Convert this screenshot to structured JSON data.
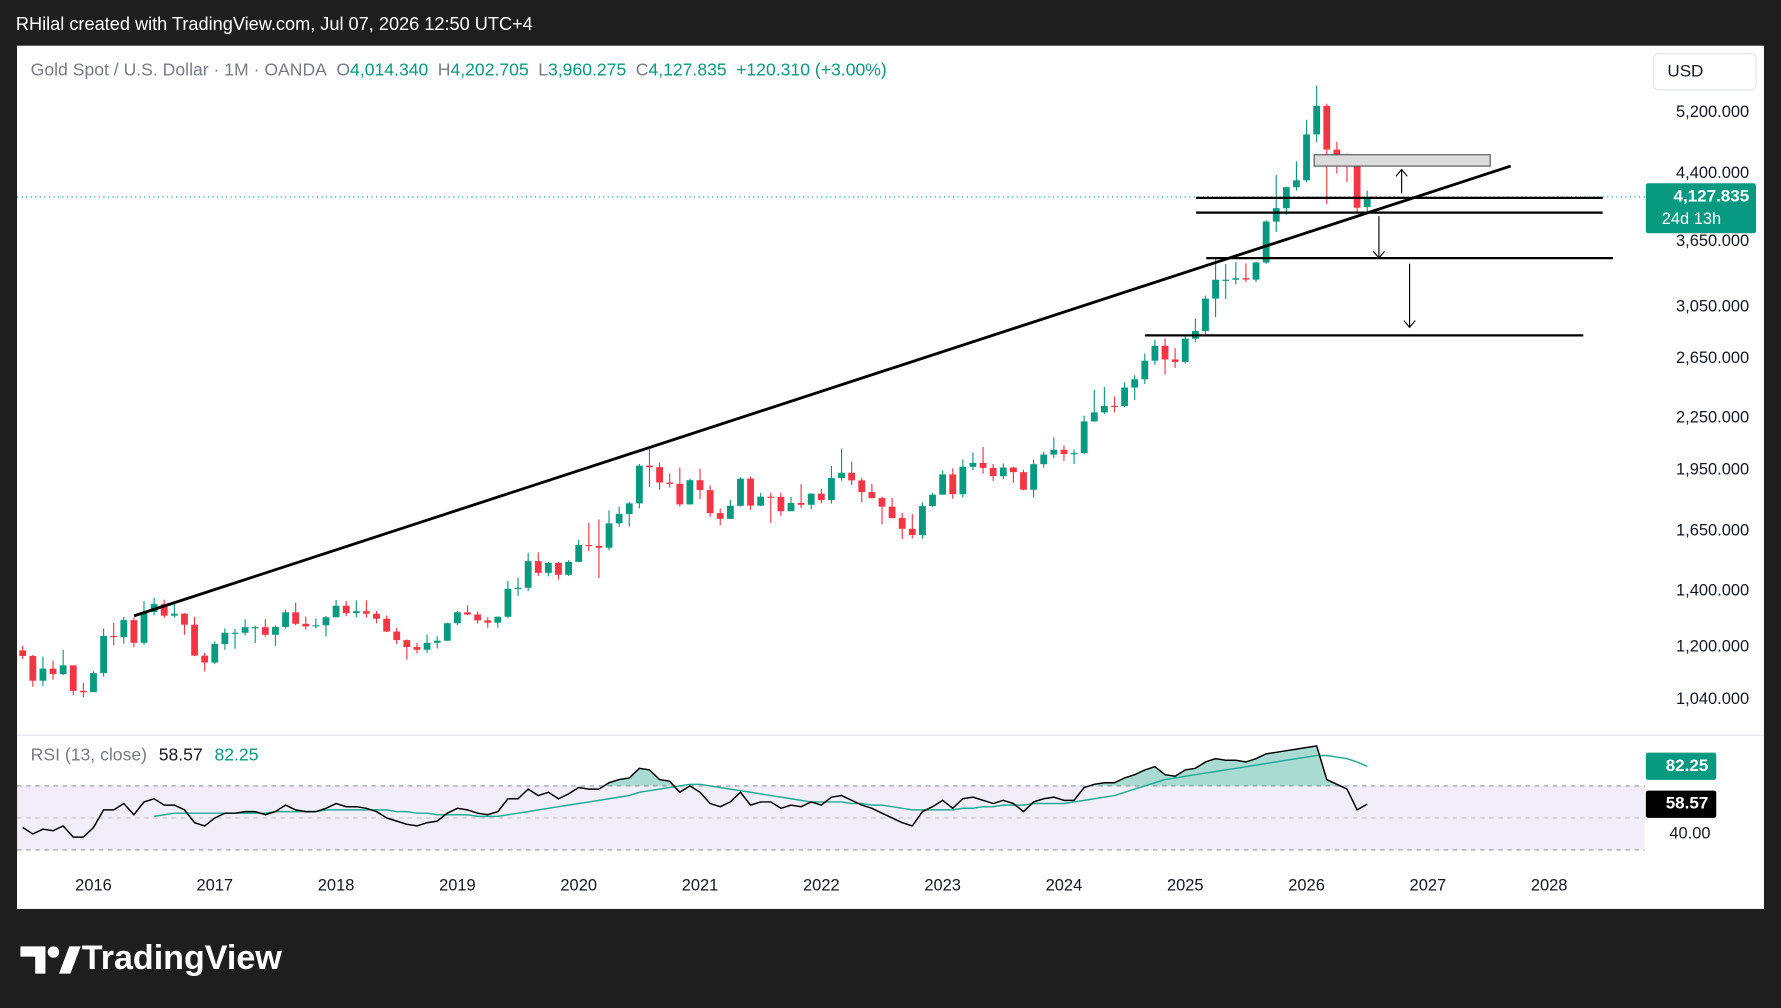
{
  "attribution": "RHilal created with TradingView.com, Jul 07, 2026 12:50 UTC+4",
  "brand": "TradingView",
  "chart_data": {
    "type": "candlestick",
    "header": {
      "symbol": "Gold Spot / U.S. Dollar · 1M · OANDA",
      "ohlc": [
        {
          "key": "O",
          "value": "4,014.340"
        },
        {
          "key": "H",
          "value": "4,202.705"
        },
        {
          "key": "L",
          "value": "3,960.275"
        },
        {
          "key": "C",
          "value": "4,127.835"
        }
      ],
      "change": "+120.310 (+3.00%)"
    },
    "currency": "USD",
    "price_label": "4,127.835",
    "countdown": "24d 13h",
    "up_color": "#089981",
    "down_color": "#f23645",
    "log_scale": true,
    "grid": false,
    "xtick_labels": [
      "2016",
      "2017",
      "2018",
      "2019",
      "2020",
      "2021",
      "2022",
      "2023",
      "2024",
      "2025",
      "2026",
      "2027",
      "2028"
    ],
    "open": [
      1190,
      1172,
      1095,
      1132,
      1115,
      1142,
      1065,
      1061,
      1118,
      1238,
      1234,
      1293,
      1215,
      1322,
      1351,
      1309,
      1316,
      1277,
      1173,
      1151,
      1211,
      1249,
      1249,
      1268,
      1268,
      1242,
      1269,
      1321,
      1280,
      1271,
      1275,
      1303,
      1345,
      1318,
      1325,
      1316,
      1298,
      1253,
      1224,
      1201,
      1192,
      1215,
      1222,
      1282,
      1321,
      1313,
      1292,
      1284,
      1305,
      1409,
      1413,
      1520,
      1472,
      1513,
      1464,
      1517,
      1589,
      1585,
      1577,
      1686,
      1730,
      1781,
      1975,
      1967,
      1886,
      1879,
      1776,
      1898,
      1847,
      1734,
      1707,
      1769,
      1906,
      1770,
      1814,
      1813,
      1743,
      1783,
      1774,
      1829,
      1797,
      1909,
      1937,
      1897,
      1837,
      1807,
      1765,
      1711,
      1661,
      1633,
      1768,
      1824,
      1928,
      1827,
      1969,
      1990,
      1963,
      1919,
      1965,
      1940,
      1849,
      1983,
      2036,
      2063,
      2039,
      2044,
      2230,
      2286,
      2327,
      2326,
      2447,
      2503,
      2634,
      2744,
      2643,
      2625,
      2798,
      2858,
      3123,
      3289,
      3289,
      3303,
      3290,
      3448,
      3858,
      4002,
      4239,
      4320,
      4900,
      5300,
      4700,
      4600,
      4500,
      4014.34
    ],
    "high": [
      1205,
      1175,
      1170,
      1157,
      1192,
      1142,
      1088,
      1124,
      1263,
      1283,
      1304,
      1303,
      1362,
      1375,
      1367,
      1352,
      1318,
      1304,
      1182,
      1220,
      1264,
      1262,
      1296,
      1273,
      1296,
      1274,
      1331,
      1357,
      1306,
      1299,
      1308,
      1366,
      1362,
      1365,
      1365,
      1326,
      1309,
      1266,
      1226,
      1214,
      1243,
      1237,
      1284,
      1326,
      1346,
      1324,
      1303,
      1306,
      1439,
      1453,
      1555,
      1557,
      1517,
      1516,
      1524,
      1612,
      1689,
      1704,
      1747,
      1765,
      1789,
      1984,
      2075,
      1992,
      1933,
      1965,
      1907,
      1959,
      1871,
      1756,
      1798,
      1913,
      1917,
      1832,
      1834,
      1834,
      1814,
      1877,
      1831,
      1853,
      1974,
      2070,
      1998,
      1910,
      1879,
      1814,
      1808,
      1735,
      1730,
      1786,
      1833,
      1949,
      1960,
      2009,
      2048,
      2079,
      1984,
      1987,
      1969,
      1953,
      2009,
      2052,
      2135,
      2088,
      2065,
      2265,
      2431,
      2450,
      2388,
      2483,
      2531,
      2686,
      2790,
      2801,
      2726,
      2817,
      2956,
      3148,
      3500,
      3435,
      3452,
      3439,
      3453,
      3872,
      4381,
      4245,
      4550,
      5100,
      5600,
      5330,
      4800,
      4650,
      4520,
      4202.705
    ],
    "low": [
      1162,
      1077,
      1080,
      1098,
      1112,
      1052,
      1046,
      1062,
      1108,
      1207,
      1212,
      1200,
      1208,
      1310,
      1301,
      1302,
      1242,
      1171,
      1123,
      1146,
      1192,
      1195,
      1240,
      1214,
      1236,
      1205,
      1263,
      1275,
      1260,
      1264,
      1236,
      1303,
      1307,
      1303,
      1302,
      1282,
      1251,
      1211,
      1160,
      1180,
      1182,
      1196,
      1221,
      1275,
      1310,
      1281,
      1266,
      1266,
      1301,
      1382,
      1400,
      1459,
      1458,
      1445,
      1459,
      1517,
      1562,
      1451,
      1567,
      1670,
      1671,
      1757,
      1863,
      1849,
      1860,
      1765,
      1775,
      1802,
      1717,
      1677,
      1706,
      1766,
      1750,
      1767,
      1688,
      1721,
      1746,
      1758,
      1753,
      1781,
      1780,
      1895,
      1872,
      1787,
      1805,
      1681,
      1709,
      1615,
      1617,
      1616,
      1765,
      1824,
      1804,
      1810,
      1950,
      1932,
      1893,
      1903,
      1884,
      1846,
      1810,
      1965,
      2016,
      2001,
      1984,
      2039,
      2228,
      2277,
      2286,
      2318,
      2364,
      2471,
      2604,
      2536,
      2583,
      2614,
      2772,
      2833,
      2970,
      3121,
      3247,
      3268,
      3268,
      3436,
      3750,
      3930,
      4200,
      4300,
      4800,
      4050,
      4400,
      4300,
      3950,
      3960.275
    ],
    "close": [
      1172,
      1095,
      1132,
      1115,
      1142,
      1065,
      1061,
      1118,
      1238,
      1234,
      1293,
      1215,
      1322,
      1351,
      1309,
      1316,
      1277,
      1173,
      1151,
      1211,
      1249,
      1249,
      1268,
      1268,
      1242,
      1269,
      1321,
      1280,
      1271,
      1275,
      1303,
      1345,
      1318,
      1325,
      1316,
      1298,
      1253,
      1224,
      1201,
      1192,
      1215,
      1222,
      1282,
      1321,
      1313,
      1292,
      1284,
      1305,
      1409,
      1413,
      1520,
      1472,
      1513,
      1464,
      1517,
      1589,
      1585,
      1577,
      1686,
      1730,
      1781,
      1975,
      1967,
      1886,
      1879,
      1776,
      1898,
      1847,
      1734,
      1707,
      1769,
      1906,
      1770,
      1814,
      1813,
      1743,
      1783,
      1774,
      1829,
      1797,
      1909,
      1937,
      1897,
      1837,
      1807,
      1765,
      1711,
      1661,
      1633,
      1768,
      1824,
      1928,
      1827,
      1969,
      1990,
      1963,
      1919,
      1965,
      1940,
      1849,
      1983,
      2036,
      2063,
      2039,
      2044,
      2230,
      2286,
      2327,
      2326,
      2447,
      2503,
      2634,
      2744,
      2643,
      2625,
      2798,
      2858,
      3123,
      3289,
      3289,
      3303,
      3290,
      3448,
      3858,
      4002,
      4239,
      4320,
      4900,
      5300,
      4700,
      4600,
      4500,
      4007.525,
      4127.835
    ],
    "ylim": [
      949,
      6250
    ],
    "yticks": [
      {
        "value": 1040,
        "label": "1,040.000"
      },
      {
        "value": 1200,
        "label": "1,200.000"
      },
      {
        "value": 1400,
        "label": "1,400.000"
      },
      {
        "value": 1650,
        "label": "1,650.000"
      },
      {
        "value": 1950,
        "label": "1,950.000"
      },
      {
        "value": 2250,
        "label": "2,250.000"
      },
      {
        "value": 2650,
        "label": "2,650.000"
      },
      {
        "value": 3050,
        "label": "3,050.000"
      },
      {
        "value": 3650,
        "label": "3,650.000"
      },
      {
        "value": 4400,
        "label": "4,400.000"
      },
      {
        "value": 5200,
        "label": "5,200.000"
      }
    ],
    "rsi": {
      "title": "RSI (13, close)",
      "value_label": "58.57",
      "ma_label": "82.25",
      "line_color": "#000000",
      "ma_color": "#22ab94",
      "ylim": [
        18,
        101
      ],
      "yticks": [
        {
          "value": 40,
          "label": "40.00"
        }
      ],
      "levels": [
        30,
        50,
        70
      ],
      "values": [
        44,
        40,
        43,
        42,
        45,
        38,
        38,
        44,
        55,
        55,
        59,
        52,
        60,
        62,
        58,
        58,
        55,
        47,
        45,
        50,
        53,
        53,
        54,
        54,
        52,
        54,
        58,
        55,
        54,
        54,
        56,
        59,
        57,
        57,
        56,
        54,
        50,
        48,
        46,
        45,
        47,
        48,
        53,
        56,
        55,
        53,
        52,
        54,
        62,
        62,
        68,
        64,
        66,
        62,
        65,
        69,
        68,
        68,
        72,
        74,
        75,
        81,
        80,
        74,
        73,
        66,
        70,
        66,
        59,
        57,
        60,
        66,
        58,
        60,
        60,
        56,
        58,
        57,
        60,
        58,
        63,
        64,
        61,
        58,
        56,
        53,
        50,
        47,
        45,
        54,
        57,
        61,
        56,
        62,
        63,
        61,
        59,
        61,
        59,
        54,
        60,
        62,
        63,
        61,
        61,
        69,
        71,
        72,
        72,
        75,
        77,
        80,
        82,
        77,
        76,
        80,
        81,
        85,
        87,
        86,
        86,
        85,
        87,
        90,
        91,
        92,
        93,
        94,
        95,
        74,
        71,
        68,
        55,
        58.57
      ],
      "ma": [
        null,
        null,
        null,
        null,
        null,
        null,
        null,
        null,
        null,
        null,
        null,
        null,
        null,
        51,
        52,
        53,
        53,
        53,
        53,
        53,
        53,
        53,
        53,
        53,
        53,
        54,
        54,
        54,
        54,
        54,
        55,
        55,
        55,
        55,
        55,
        55,
        55,
        54,
        54,
        53,
        53,
        52,
        52,
        52,
        52,
        51,
        51,
        51,
        52,
        53,
        54,
        55,
        56,
        57,
        58,
        59,
        60,
        61,
        62,
        63,
        64,
        66,
        67,
        68,
        69,
        70,
        71,
        71,
        70,
        69,
        68,
        67,
        66,
        65,
        64,
        63,
        62,
        61,
        60,
        60,
        60,
        60,
        59,
        59,
        58,
        58,
        57,
        56,
        55,
        55,
        55,
        55,
        55,
        56,
        56,
        57,
        57,
        58,
        58,
        58,
        59,
        59,
        59,
        59,
        60,
        61,
        62,
        63,
        64,
        66,
        68,
        70,
        72,
        74,
        75,
        76,
        77,
        78,
        79,
        80,
        81,
        82,
        83,
        84,
        85,
        86,
        87,
        88,
        89,
        89,
        88,
        87,
        85,
        82.25
      ]
    }
  }
}
